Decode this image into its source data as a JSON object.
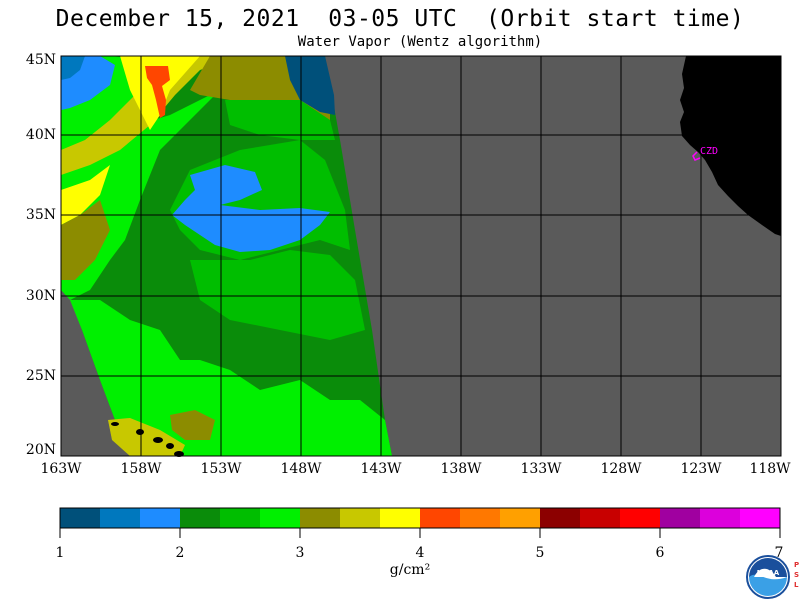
{
  "header": {
    "title": "December 15, 2021  03-05 UTC  (Orbit start time)",
    "subtitle": "Water Vapor (Wentz algorithm)"
  },
  "map": {
    "latitude_labels": [
      "45N",
      "40N",
      "35N",
      "30N",
      "25N",
      "20N"
    ],
    "longitude_labels": [
      "163W",
      "158W",
      "153W",
      "148W",
      "143W",
      "138W",
      "133W",
      "128W",
      "123W",
      "118W"
    ],
    "city_label": "CZD",
    "colors": {
      "ocean_no_data": "#5a5a5a",
      "land": "#000000",
      "grid": "#000000",
      "city_marker": "#ff00ff"
    }
  },
  "colorbar": {
    "tick_labels": [
      "1",
      "2",
      "3",
      "4",
      "5",
      "6",
      "7"
    ],
    "unit": "g/cm²",
    "colors": [
      "#00507a",
      "#0078be",
      "#1e8cff",
      "#0a8c0a",
      "#00be00",
      "#00f000",
      "#8c8c00",
      "#c8c800",
      "#ffff00",
      "#ff4600",
      "#ff7800",
      "#ffa000",
      "#8c0000",
      "#c80000",
      "#ff0000",
      "#a000a0",
      "#dc00dc",
      "#ff00ff"
    ]
  },
  "logos": {
    "agency_icon": "noaa-logo-icon",
    "side_text": "PSL"
  }
}
